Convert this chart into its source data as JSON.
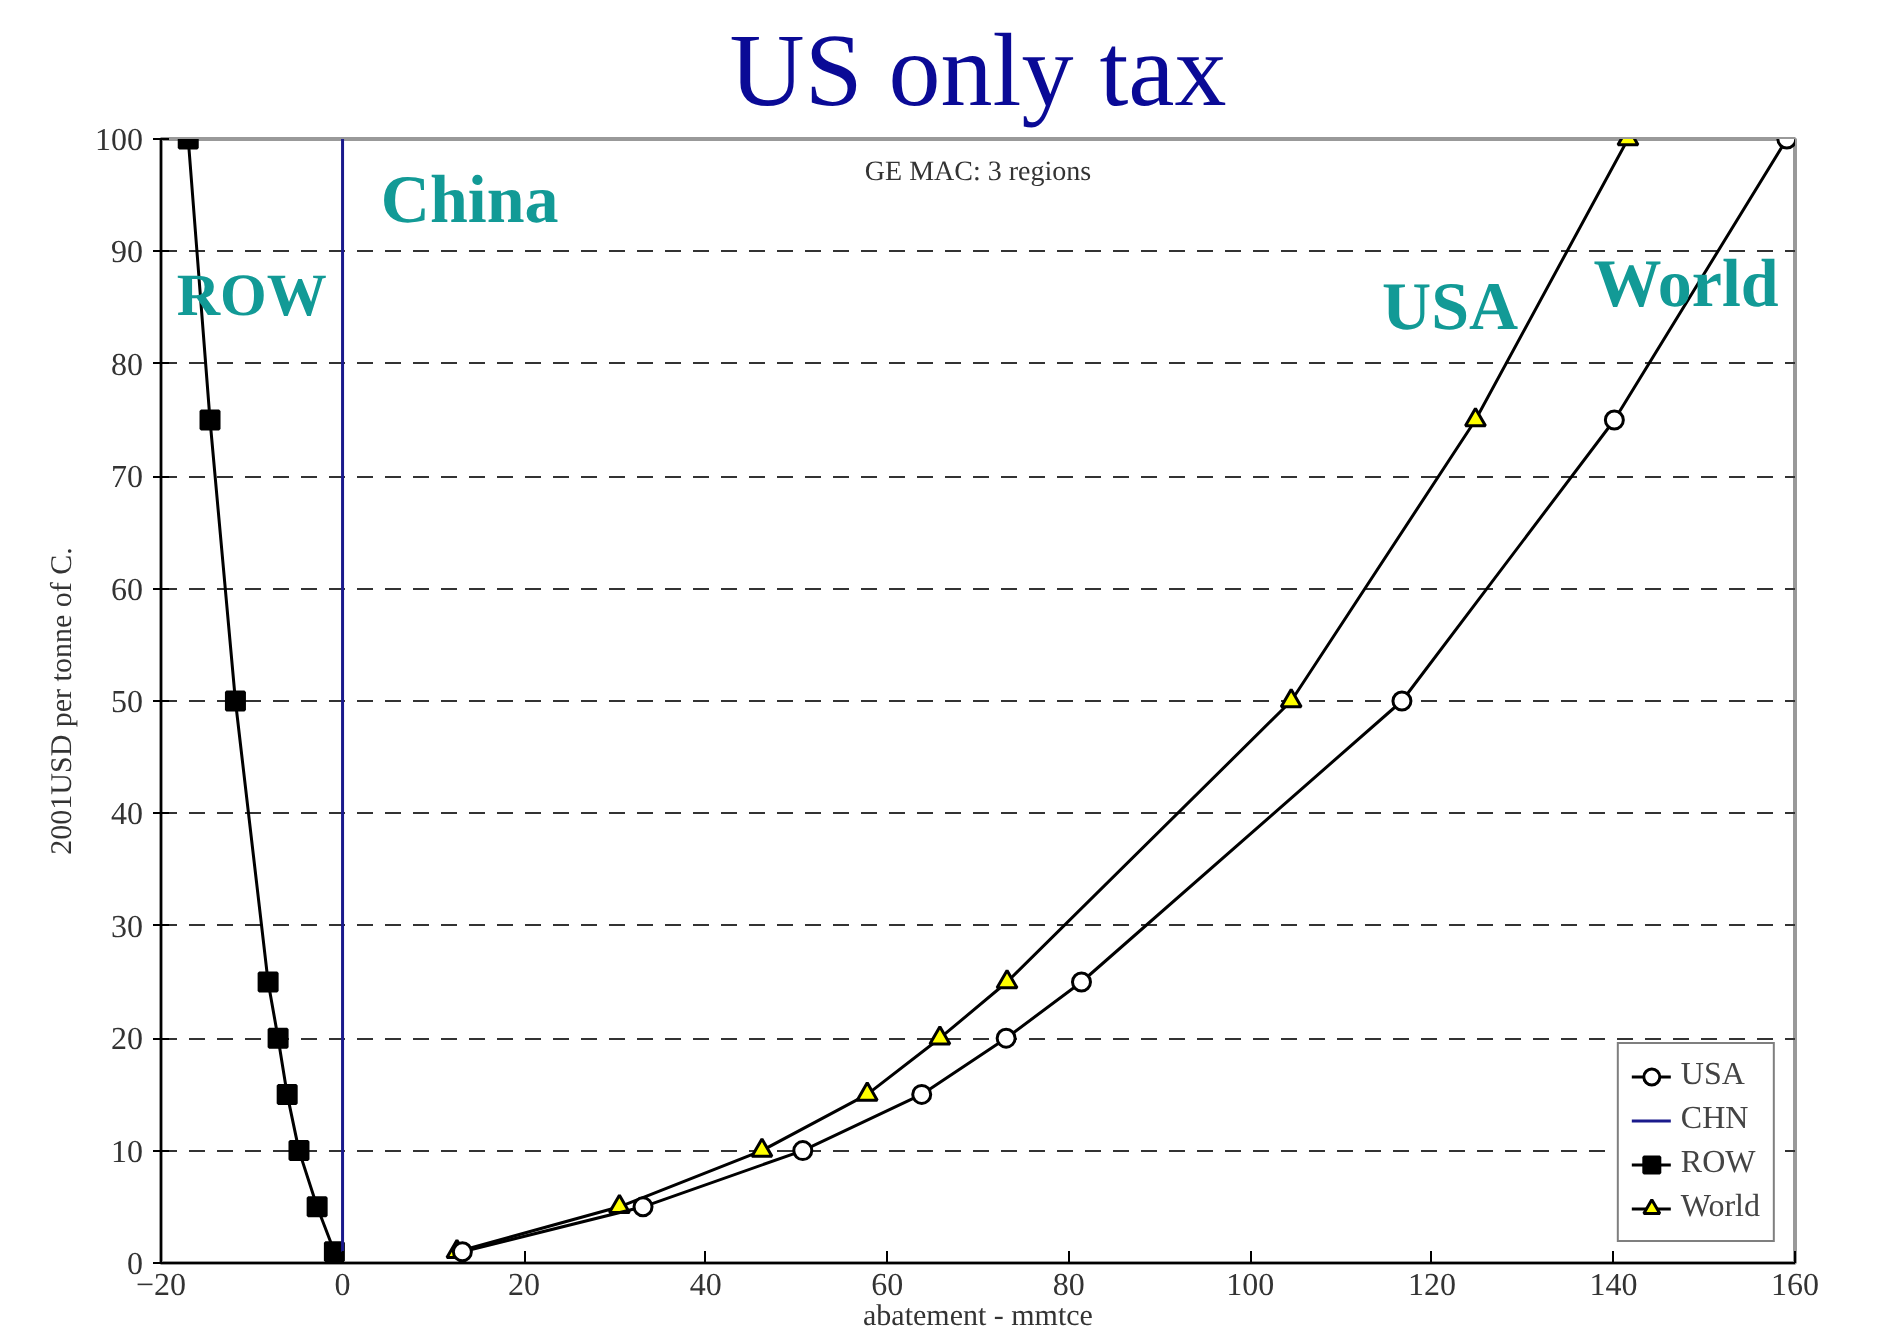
{
  "chart_data": {
    "type": "line",
    "title": "US only tax",
    "xlabel": "abatement - mmtce",
    "ylabel": "2001USD per tonne of C.",
    "annotations": [
      "GE MAC: 3 regions",
      "China",
      "ROW",
      "USA",
      "World"
    ],
    "xlim": [
      -20,
      160
    ],
    "xticks": [
      -20,
      0,
      20,
      40,
      60,
      80,
      100,
      120,
      140,
      160
    ],
    "ylim": [
      0,
      100
    ],
    "yticks": [
      0,
      10,
      20,
      30,
      40,
      50,
      60,
      70,
      80,
      90,
      100
    ],
    "grid": "y",
    "legend": "bottom right",
    "line_style": "solid",
    "series": [
      {
        "name": "USA",
        "color": "#000000",
        "marker": "circle",
        "x": [
          13.2,
          33.1,
          50.7,
          63.8,
          73.1,
          81.4,
          116.7,
          140.1,
          159.1
        ],
        "values": [
          1,
          5,
          10,
          15,
          20,
          25,
          50,
          75,
          100
        ]
      },
      {
        "name": "CHN",
        "color": "#1a1a8c",
        "marker": "none",
        "x": [
          0,
          0,
          0,
          0,
          0,
          0,
          0,
          0,
          0
        ],
        "values": [
          1,
          5,
          10,
          15,
          20,
          25,
          50,
          75,
          100
        ]
      },
      {
        "name": "ROW",
        "color": "#000000",
        "marker": "square",
        "x": [
          -0.9,
          -2.8,
          -4.8,
          -6.1,
          -7.1,
          -8.2,
          -11.8,
          -14.6,
          -17.0
        ],
        "values": [
          1,
          5,
          10,
          15,
          20,
          25,
          50,
          75,
          100
        ]
      },
      {
        "name": "World",
        "color": "#000000",
        "marker": "triangle",
        "x": [
          12.6,
          30.5,
          46.2,
          57.8,
          65.8,
          73.2,
          104.5,
          124.8,
          141.6
        ],
        "values": [
          1,
          5,
          10,
          15,
          20,
          25,
          50,
          75,
          100
        ]
      }
    ]
  }
}
